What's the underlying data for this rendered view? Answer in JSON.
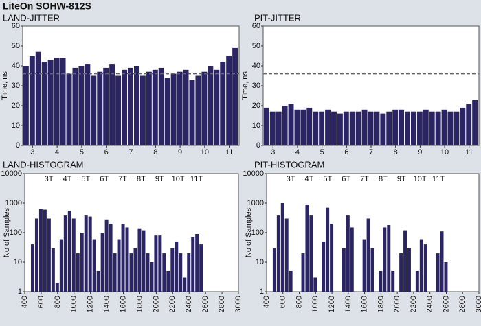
{
  "title": "LiteOn SOHW-812S",
  "chart_data": [
    {
      "type": "bar",
      "title": "LAND-JITTER",
      "y_label": "Time, ns",
      "color": "#2b2563",
      "x": [
        2.75,
        3,
        3.25,
        3.5,
        3.75,
        4,
        4.25,
        4.5,
        4.75,
        5,
        5.25,
        5.5,
        5.75,
        6,
        6.25,
        6.5,
        6.75,
        7,
        7.25,
        7.5,
        7.75,
        8,
        8.25,
        8.5,
        8.75,
        9,
        9.25,
        9.5,
        9.75,
        10,
        10.25,
        10.5,
        10.75,
        11,
        11.25
      ],
      "values": [
        40,
        45,
        47,
        42,
        43,
        44,
        44,
        36,
        39,
        40,
        41,
        35,
        37,
        39,
        41,
        35,
        38,
        39,
        40,
        35,
        37,
        38,
        39,
        34,
        36,
        37,
        38,
        33,
        35,
        37,
        40,
        38,
        42,
        45,
        49
      ],
      "xlim": [
        2.6,
        11.4
      ],
      "xticks": [
        3,
        4,
        5,
        6,
        7,
        8,
        9,
        10,
        11
      ],
      "ylim": [
        0,
        60
      ],
      "yticks": [
        0,
        10,
        20,
        30,
        40,
        50,
        60
      ],
      "reference_line": 36
    },
    {
      "type": "bar",
      "title": "PIT-JITTER",
      "y_label": "Time, ns",
      "color": "#2b2563",
      "x": [
        2.75,
        3,
        3.25,
        3.5,
        3.75,
        4,
        4.25,
        4.5,
        4.75,
        5,
        5.25,
        5.5,
        5.75,
        6,
        6.25,
        6.5,
        6.75,
        7,
        7.25,
        7.5,
        7.75,
        8,
        8.25,
        8.5,
        8.75,
        9,
        9.25,
        9.5,
        9.75,
        10,
        10.25,
        10.5,
        10.75,
        11,
        11.25
      ],
      "values": [
        19,
        17,
        17,
        20,
        21,
        18,
        18,
        19,
        17,
        17,
        18,
        17,
        16,
        17,
        17,
        17,
        18,
        17,
        17,
        16,
        17,
        18,
        18,
        17,
        17,
        17,
        18,
        17,
        17,
        18,
        17,
        17,
        19,
        21,
        23
      ],
      "xlim": [
        2.6,
        11.4
      ],
      "xticks": [
        3,
        4,
        5,
        6,
        7,
        8,
        9,
        10,
        11
      ],
      "ylim": [
        0,
        60
      ],
      "yticks": [
        0,
        10,
        20,
        30,
        40,
        50,
        60
      ],
      "reference_line": 36
    },
    {
      "type": "bar",
      "title": "LAND-HISTOGRAM",
      "y_label": "No of Samples",
      "color": "#2b2563",
      "y_scale": "log",
      "annotations": [
        "3T",
        "4T",
        "5T",
        "6T",
        "7T",
        "8T",
        "9T",
        "10T",
        "11T"
      ],
      "x": [
        450,
        500,
        550,
        600,
        650,
        700,
        750,
        800,
        850,
        900,
        950,
        1000,
        1050,
        1100,
        1150,
        1200,
        1250,
        1300,
        1350,
        1400,
        1450,
        1500,
        1550,
        1600,
        1650,
        1700,
        1750,
        1800,
        1850,
        1900,
        1950,
        2000,
        2050,
        2100,
        2150,
        2200,
        2250,
        2300,
        2350,
        2400,
        2450,
        2500,
        2550,
        2600,
        2650,
        2700
      ],
      "values": [
        0,
        40,
        300,
        650,
        600,
        300,
        30,
        2,
        60,
        400,
        550,
        300,
        20,
        100,
        400,
        350,
        60,
        5,
        100,
        280,
        200,
        20,
        60,
        200,
        150,
        20,
        30,
        140,
        120,
        20,
        10,
        80,
        80,
        20,
        5,
        30,
        50,
        20,
        3,
        20,
        70,
        90,
        40,
        1,
        0,
        0
      ],
      "xlim": [
        400,
        3000
      ],
      "xticks": [
        400,
        600,
        800,
        1000,
        1200,
        1400,
        1600,
        1800,
        2000,
        2200,
        2400,
        2600,
        2800,
        3000
      ],
      "ylim": [
        1,
        10000
      ],
      "yticks": [
        1,
        10,
        100,
        1000,
        10000
      ]
    },
    {
      "type": "bar",
      "title": "PIT-HISTOGRAM",
      "y_label": "No of Samples",
      "color": "#2b2563",
      "y_scale": "log",
      "annotations": [
        "3T",
        "4T",
        "5T",
        "6T",
        "7T",
        "8T",
        "9T",
        "10T",
        "11T"
      ],
      "x": [
        450,
        500,
        550,
        600,
        650,
        700,
        750,
        800,
        850,
        900,
        950,
        1000,
        1050,
        1100,
        1150,
        1200,
        1250,
        1300,
        1350,
        1400,
        1450,
        1500,
        1550,
        1600,
        1650,
        1700,
        1750,
        1800,
        1850,
        1900,
        1950,
        2000,
        2050,
        2100,
        2150,
        2200,
        2250,
        2300,
        2350,
        2400,
        2450,
        2500,
        2550,
        2600,
        2650,
        2700
      ],
      "values": [
        0,
        30,
        400,
        1000,
        300,
        5,
        0,
        0,
        20,
        900,
        400,
        3,
        0,
        50,
        700,
        200,
        1,
        0,
        30,
        400,
        150,
        1,
        0,
        60,
        300,
        30,
        0,
        5,
        150,
        180,
        5,
        0,
        20,
        120,
        30,
        0,
        5,
        60,
        40,
        0,
        0,
        20,
        110,
        10,
        0,
        0
      ],
      "xlim": [
        400,
        3000
      ],
      "xticks": [
        400,
        600,
        800,
        1000,
        1200,
        1400,
        1600,
        1800,
        2000,
        2200,
        2400,
        2600,
        2800,
        3000
      ],
      "ylim": [
        1,
        10000
      ],
      "yticks": [
        1,
        10,
        100,
        1000,
        10000
      ]
    }
  ]
}
